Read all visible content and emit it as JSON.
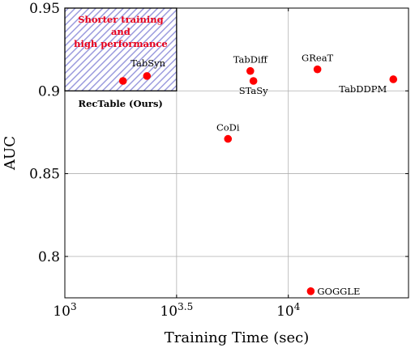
{
  "chart_data": {
    "type": "scatter",
    "xlabel": "Training Time (sec)",
    "ylabel": "AUC",
    "xscale": "log10",
    "xlim": [
      1000,
      34500
    ],
    "ylim": [
      0.775,
      0.95
    ],
    "x_ticks": [
      {
        "value": 1000,
        "base": "10",
        "exp": "3"
      },
      {
        "value": 3162.28,
        "base": "10",
        "exp": "3.5"
      },
      {
        "value": 10000,
        "base": "10",
        "exp": "4"
      }
    ],
    "y_ticks": [
      {
        "value": 0.8,
        "label": "0.8"
      },
      {
        "value": 0.85,
        "label": "0.85"
      },
      {
        "value": 0.9,
        "label": "0.9"
      },
      {
        "value": 0.95,
        "label": "0.95"
      }
    ],
    "grid": true,
    "marker_color": "#ff0000",
    "points": [
      {
        "name": "RecTable (Ours)",
        "x": 1820,
        "y": 0.906
      },
      {
        "name": "TabSyn",
        "x": 2330,
        "y": 0.909
      },
      {
        "name": "TabDiff",
        "x": 6760,
        "y": 0.912
      },
      {
        "name": "STaSy",
        "x": 6980,
        "y": 0.906
      },
      {
        "name": "CoDi",
        "x": 5370,
        "y": 0.871
      },
      {
        "name": "GReaT",
        "x": 13500,
        "y": 0.913
      },
      {
        "name": "TabDDPM",
        "x": 29500,
        "y": 0.907
      },
      {
        "name": "GOGGLE",
        "x": 12600,
        "y": 0.779
      }
    ],
    "highlight_region": {
      "x": [
        1000,
        3162.28
      ],
      "y": [
        0.9,
        0.95
      ],
      "label_lines": [
        "Shorter training",
        "and",
        "high performance"
      ],
      "label_color": "#e8001c",
      "hatch_color": "#9c9cde"
    }
  }
}
